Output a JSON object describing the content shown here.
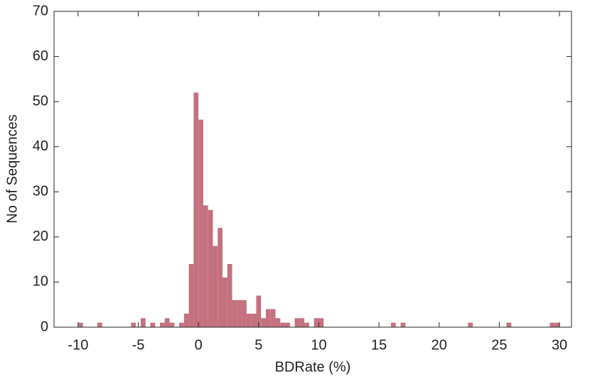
{
  "chart_data": {
    "type": "histogram",
    "xlabel": "BDRate (%)",
    "ylabel": "No of Sequences",
    "bins": [
      -10,
      -9.6,
      -9.2,
      -8.8,
      -8.4,
      -8,
      -7.6,
      -7.2,
      -6.8,
      -6.4,
      -6,
      -5.6,
      -5.2,
      -4.8,
      -4.4,
      -4,
      -3.6,
      -3.2,
      -2.8,
      -2.4,
      -2,
      -1.6,
      -1.2,
      -0.8,
      -0.4,
      0,
      0.4,
      0.8,
      1.2,
      1.6,
      2,
      2.4,
      2.8,
      3.2,
      3.6,
      4,
      4.4,
      4.8,
      5.2,
      5.6,
      6,
      6.4,
      6.8,
      7.2,
      7.6,
      8,
      8.4,
      8.8,
      9.2,
      9.6,
      10,
      10.4,
      10.8,
      11.2,
      11.6,
      12,
      12.4,
      12.8,
      13.2,
      13.6,
      14,
      14.4,
      14.8,
      15.2,
      15.6,
      16,
      16.4,
      16.8,
      17.2,
      17.6,
      18,
      18.4,
      18.8,
      19.2,
      19.6,
      20,
      20.4,
      20.8,
      21.2,
      21.6,
      22,
      22.4,
      22.8,
      23.2,
      23.6,
      24,
      24.4,
      24.8,
      25.2,
      25.6,
      26,
      26.4,
      26.8,
      27.2,
      27.6,
      28,
      28.4,
      28.8,
      29.2,
      29.6,
      30
    ],
    "values": [
      1,
      0,
      0,
      0,
      1,
      0,
      0,
      0,
      0,
      0,
      0,
      1,
      0,
      2,
      0,
      1,
      0,
      1,
      2,
      1,
      0,
      1,
      3,
      14,
      52,
      46,
      27,
      26,
      18,
      22,
      11,
      14,
      6,
      6,
      6,
      3,
      3,
      7,
      2,
      4,
      4,
      2,
      1,
      1,
      0,
      2,
      2,
      1,
      0,
      2,
      2,
      0,
      0,
      0,
      0,
      0,
      0,
      0,
      0,
      0,
      0,
      0,
      0,
      0,
      0,
      1,
      0,
      1,
      0,
      0,
      0,
      0,
      0,
      0,
      0,
      0,
      0,
      0,
      0,
      0,
      0,
      1,
      0,
      0,
      0,
      0,
      0,
      0,
      0,
      1,
      0,
      0,
      0,
      0,
      0,
      0,
      0,
      0,
      1,
      1
    ],
    "color": "#c4717f",
    "xlim": [
      -12,
      31
    ],
    "ylim": [
      0,
      70
    ],
    "xticks": [
      -10,
      -5,
      0,
      5,
      10,
      15,
      20,
      25,
      30
    ],
    "yticks": [
      0,
      10,
      20,
      30,
      40,
      50,
      60,
      70
    ]
  }
}
